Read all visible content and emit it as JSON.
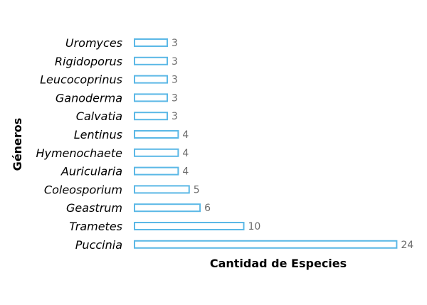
{
  "chart_data": {
    "type": "bar",
    "orientation": "horizontal",
    "categories": [
      "Uromyces",
      "Rigidoporus",
      "Leucocoprinus",
      "Ganoderma",
      "Calvatia",
      "Lentinus",
      "Hymenochaete",
      "Auricularia",
      "Coleosporium",
      "Geastrum",
      "Trametes",
      "Puccinia"
    ],
    "values": [
      3,
      3,
      3,
      3,
      3,
      4,
      4,
      4,
      5,
      6,
      10,
      24
    ],
    "title": "",
    "xlabel": "Cantidad de Especies",
    "ylabel": "Géneros",
    "xlim": [
      0,
      24
    ],
    "grid": false,
    "bar_outline_color": "#5bb8e6",
    "bar_fill_color": "#ffffff"
  }
}
